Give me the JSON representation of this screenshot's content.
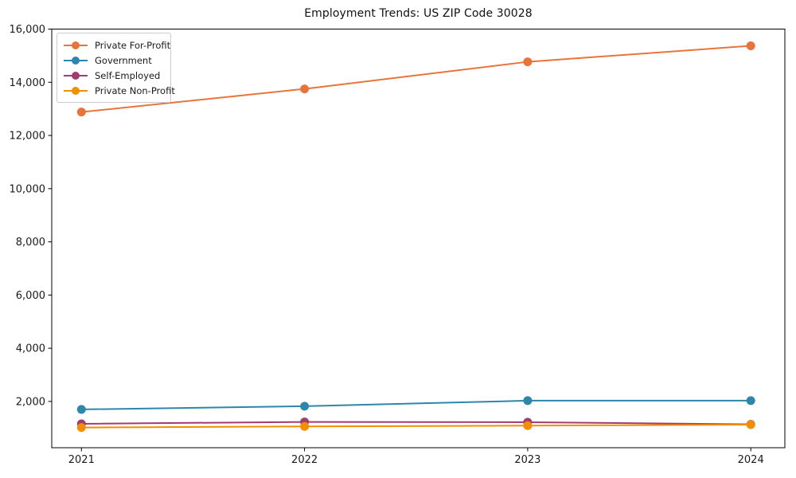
{
  "chart_data": {
    "type": "line",
    "title": "Employment Trends: US ZIP Code 30028",
    "x": [
      2021,
      2022,
      2023,
      2024
    ],
    "xlabel": "",
    "ylabel": "",
    "ylim": [
      260,
      16000
    ],
    "yticks": [
      2000,
      4000,
      6000,
      8000,
      10000,
      12000,
      14000,
      16000
    ],
    "grid": false,
    "legend_position": "upper-left",
    "axis_color": "#000000",
    "background_color": "#ffffff",
    "series": [
      {
        "name": "Private For-Profit",
        "color": "#E8743B",
        "values": [
          12880,
          13750,
          14770,
          15370
        ]
      },
      {
        "name": "Government",
        "color": "#2E86AB",
        "values": [
          1700,
          1820,
          2030,
          2030
        ]
      },
      {
        "name": "Self-Employed",
        "color": "#A23B72",
        "values": [
          1160,
          1230,
          1220,
          1140
        ]
      },
      {
        "name": "Private Non-Profit",
        "color": "#F18F01",
        "values": [
          1020,
          1060,
          1090,
          1130
        ]
      }
    ]
  }
}
